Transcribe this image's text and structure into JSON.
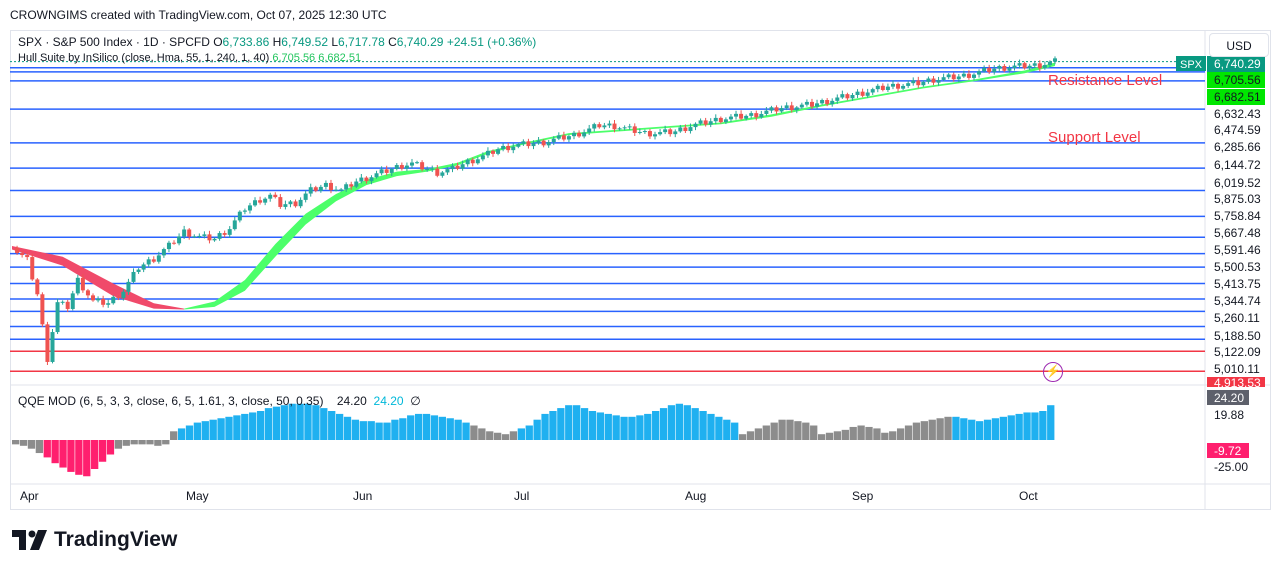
{
  "header": {
    "attribution": "CROWNGIMS created with TradingView.com, Oct 07, 2025 12:30 UTC"
  },
  "legend": {
    "symbol": "SPX · S&P 500 Index · 1D · SPCFD",
    "o_label": "O",
    "o_value": "6,733.86",
    "h_label": "H",
    "h_value": "6,749.52",
    "l_label": "L",
    "l_value": "6,717.78",
    "c_label": "C",
    "c_value": "6,740.29",
    "change": "+24.51 (+0.36%)",
    "hull_name": "Hull Suite by InSilico (close, Hma, 55, 1, 240, 1, 40)",
    "hull_v1": "6,705.56",
    "hull_v2": "6,682.51"
  },
  "qqe_legend": {
    "name": "QQE MOD (6, 5, 3, 3, close, 6, 5, 1.61, 3, close, 50, 0.35)",
    "v1": "24.20",
    "v2": "24.20",
    "v3": "∅"
  },
  "currency_button": "USD",
  "annotations": {
    "resistance": "Resistance Level",
    "support": "Support Level"
  },
  "brand": {
    "name": "TradingView"
  },
  "icons": {
    "replay": "lightning-icon",
    "logo": "tradingview-logo-icon"
  },
  "colors": {
    "up": "#26a69a",
    "down": "#ef5350",
    "level_line": "#2962ff",
    "red_line": "#f23645",
    "hull_up": "#4cff6a",
    "hull_down": "#f04a6a",
    "qqe_blue": "#1fb0f0",
    "qqe_gray": "#8c8c8c",
    "qqe_red": "#ff1f6e"
  },
  "chart_data": {
    "type": "candlestick",
    "symbol": "SPX",
    "timeframe": "1D",
    "x_tick_labels": [
      "Apr",
      "May",
      "Jun",
      "Jul",
      "Aug",
      "Sep",
      "Oct"
    ],
    "y_range": [
      4950,
      6760
    ],
    "price_labels": [
      {
        "text": "6,740.29",
        "tag": "SPX",
        "kind": "last"
      },
      {
        "text": "6,705.56",
        "kind": "hull-green"
      },
      {
        "text": "6,682.51",
        "kind": "hull-green"
      },
      {
        "text": "6,632.43",
        "kind": "level"
      },
      {
        "text": "6,474.59",
        "kind": "level"
      },
      {
        "text": "6,285.66",
        "kind": "level"
      },
      {
        "text": "6,144.72",
        "kind": "level"
      },
      {
        "text": "6,019.52",
        "kind": "level"
      },
      {
        "text": "5,875.03",
        "kind": "level"
      },
      {
        "text": "5,758.84",
        "kind": "level"
      },
      {
        "text": "5,667.48",
        "kind": "level"
      },
      {
        "text": "5,591.46",
        "kind": "level"
      },
      {
        "text": "5,500.53",
        "kind": "level"
      },
      {
        "text": "5,413.75",
        "kind": "level"
      },
      {
        "text": "5,344.74",
        "kind": "level"
      },
      {
        "text": "5,260.11",
        "kind": "level"
      },
      {
        "text": "5,188.50",
        "kind": "level"
      },
      {
        "text": "5,122.09",
        "kind": "red-level"
      },
      {
        "text": "5,010.11",
        "kind": "red-level"
      },
      {
        "text": "4,913.53",
        "kind": "red"
      }
    ],
    "horizontal_levels": [
      6705.56,
      6682.51,
      6632.43,
      6474.59,
      6285.66,
      6144.72,
      6019.52,
      5875.03,
      5758.84,
      5667.48,
      5591.46,
      5500.53,
      5413.75,
      5344.74,
      5260.11,
      5188.5,
      5122.09,
      5010.11
    ],
    "red_levels": [
      5122.09,
      5010.11
    ],
    "close_path": [
      [
        0,
        5700
      ],
      [
        3,
        5630
      ],
      [
        5,
        5440
      ],
      [
        7,
        5080
      ],
      [
        9,
        5390
      ],
      [
        11,
        5370
      ],
      [
        13,
        5520
      ],
      [
        16,
        5400
      ],
      [
        19,
        5390
      ],
      [
        22,
        5460
      ],
      [
        25,
        5590
      ],
      [
        28,
        5640
      ],
      [
        31,
        5710
      ],
      [
        34,
        5790
      ],
      [
        37,
        5760
      ],
      [
        40,
        5750
      ],
      [
        43,
        5810
      ],
      [
        46,
        5920
      ],
      [
        49,
        5970
      ],
      [
        51,
        5990
      ],
      [
        53,
        5940
      ],
      [
        56,
        5950
      ],
      [
        59,
        6020
      ],
      [
        62,
        6050
      ],
      [
        65,
        6020
      ],
      [
        68,
        6070
      ],
      [
        71,
        6100
      ],
      [
        74,
        6130
      ],
      [
        77,
        6160
      ],
      [
        79,
        6170
      ],
      [
        81,
        6150
      ],
      [
        84,
        6120
      ],
      [
        87,
        6140
      ],
      [
        90,
        6180
      ],
      [
        93,
        6210
      ],
      [
        96,
        6250
      ],
      [
        99,
        6270
      ],
      [
        102,
        6280
      ],
      [
        105,
        6290
      ],
      [
        108,
        6310
      ],
      [
        111,
        6330
      ],
      [
        114,
        6360
      ],
      [
        116,
        6385
      ],
      [
        119,
        6380
      ],
      [
        122,
        6360
      ],
      [
        125,
        6340
      ],
      [
        128,
        6340
      ],
      [
        131,
        6350
      ],
      [
        134,
        6380
      ],
      [
        137,
        6400
      ],
      [
        140,
        6420
      ],
      [
        143,
        6430
      ],
      [
        146,
        6440
      ],
      [
        149,
        6460
      ],
      [
        152,
        6480
      ],
      [
        155,
        6490
      ],
      [
        158,
        6500
      ],
      [
        161,
        6520
      ],
      [
        164,
        6540
      ],
      [
        167,
        6560
      ],
      [
        170,
        6580
      ],
      [
        173,
        6600
      ],
      [
        176,
        6610
      ],
      [
        179,
        6620
      ],
      [
        182,
        6640
      ],
      [
        185,
        6650
      ],
      [
        188,
        6660
      ],
      [
        191,
        6680
      ],
      [
        194,
        6700
      ],
      [
        197,
        6710
      ],
      [
        200,
        6715
      ],
      [
        203,
        6720
      ],
      [
        206,
        6740
      ]
    ],
    "hull_band_upper_path": [
      [
        0,
        5710
      ],
      [
        10,
        5650
      ],
      [
        20,
        5500
      ],
      [
        28,
        5390
      ],
      [
        34,
        5360
      ],
      [
        40,
        5400
      ],
      [
        46,
        5520
      ],
      [
        52,
        5720
      ],
      [
        58,
        5890
      ],
      [
        64,
        6000
      ],
      [
        70,
        6080
      ],
      [
        76,
        6125
      ],
      [
        82,
        6140
      ],
      [
        88,
        6175
      ],
      [
        94,
        6240
      ],
      [
        100,
        6280
      ],
      [
        110,
        6340
      ],
      [
        120,
        6360
      ],
      [
        130,
        6380
      ],
      [
        140,
        6400
      ],
      [
        150,
        6445
      ],
      [
        160,
        6500
      ],
      [
        170,
        6550
      ],
      [
        180,
        6600
      ],
      [
        190,
        6640
      ],
      [
        200,
        6690
      ],
      [
        206,
        6735
      ]
    ],
    "hull_band_lower_path": [
      [
        0,
        5690
      ],
      [
        10,
        5600
      ],
      [
        20,
        5430
      ],
      [
        28,
        5360
      ],
      [
        34,
        5355
      ],
      [
        40,
        5370
      ],
      [
        46,
        5460
      ],
      [
        52,
        5650
      ],
      [
        58,
        5830
      ],
      [
        64,
        5960
      ],
      [
        70,
        6050
      ],
      [
        76,
        6100
      ],
      [
        82,
        6125
      ],
      [
        88,
        6160
      ],
      [
        94,
        6225
      ],
      [
        100,
        6270
      ],
      [
        110,
        6330
      ],
      [
        120,
        6350
      ],
      [
        130,
        6370
      ],
      [
        140,
        6390
      ],
      [
        150,
        6432
      ],
      [
        160,
        6490
      ],
      [
        170,
        6540
      ],
      [
        180,
        6590
      ],
      [
        190,
        6630
      ],
      [
        200,
        6675
      ],
      [
        206,
        6715
      ]
    ],
    "hull_color_change_index": 34,
    "qqe": {
      "y_labels": [
        "24.20",
        "19.88",
        "-9.72",
        "-25.00"
      ],
      "histogram": [
        -3,
        -4,
        -6,
        -9,
        -12,
        -16,
        -19,
        -22,
        -24,
        -25,
        -20,
        -15,
        -10,
        -6,
        -4,
        -3,
        -3,
        -3,
        -4,
        -3,
        6,
        8,
        10,
        12,
        13,
        14,
        15,
        16,
        17,
        18,
        19,
        20,
        22,
        23,
        24,
        25,
        25,
        25,
        24,
        22,
        20,
        18,
        16,
        14,
        13,
        13,
        12,
        12,
        14,
        15,
        17,
        18,
        18,
        17,
        16,
        15,
        14,
        12,
        10,
        8,
        6,
        5,
        4,
        6,
        8,
        10,
        14,
        18,
        20,
        22,
        24,
        24,
        22,
        20,
        19,
        18,
        17,
        16,
        16,
        17,
        18,
        20,
        22,
        24,
        25,
        24,
        22,
        20,
        18,
        16,
        14,
        12,
        4,
        6,
        8,
        10,
        12,
        14,
        14,
        13,
        12,
        10,
        4,
        5,
        6,
        7,
        9,
        10,
        9,
        8,
        5,
        6,
        8,
        10,
        12,
        13,
        14,
        15,
        16,
        16,
        15,
        14,
        13,
        14,
        15,
        16,
        17,
        18,
        19,
        19,
        20,
        24
      ]
    }
  }
}
